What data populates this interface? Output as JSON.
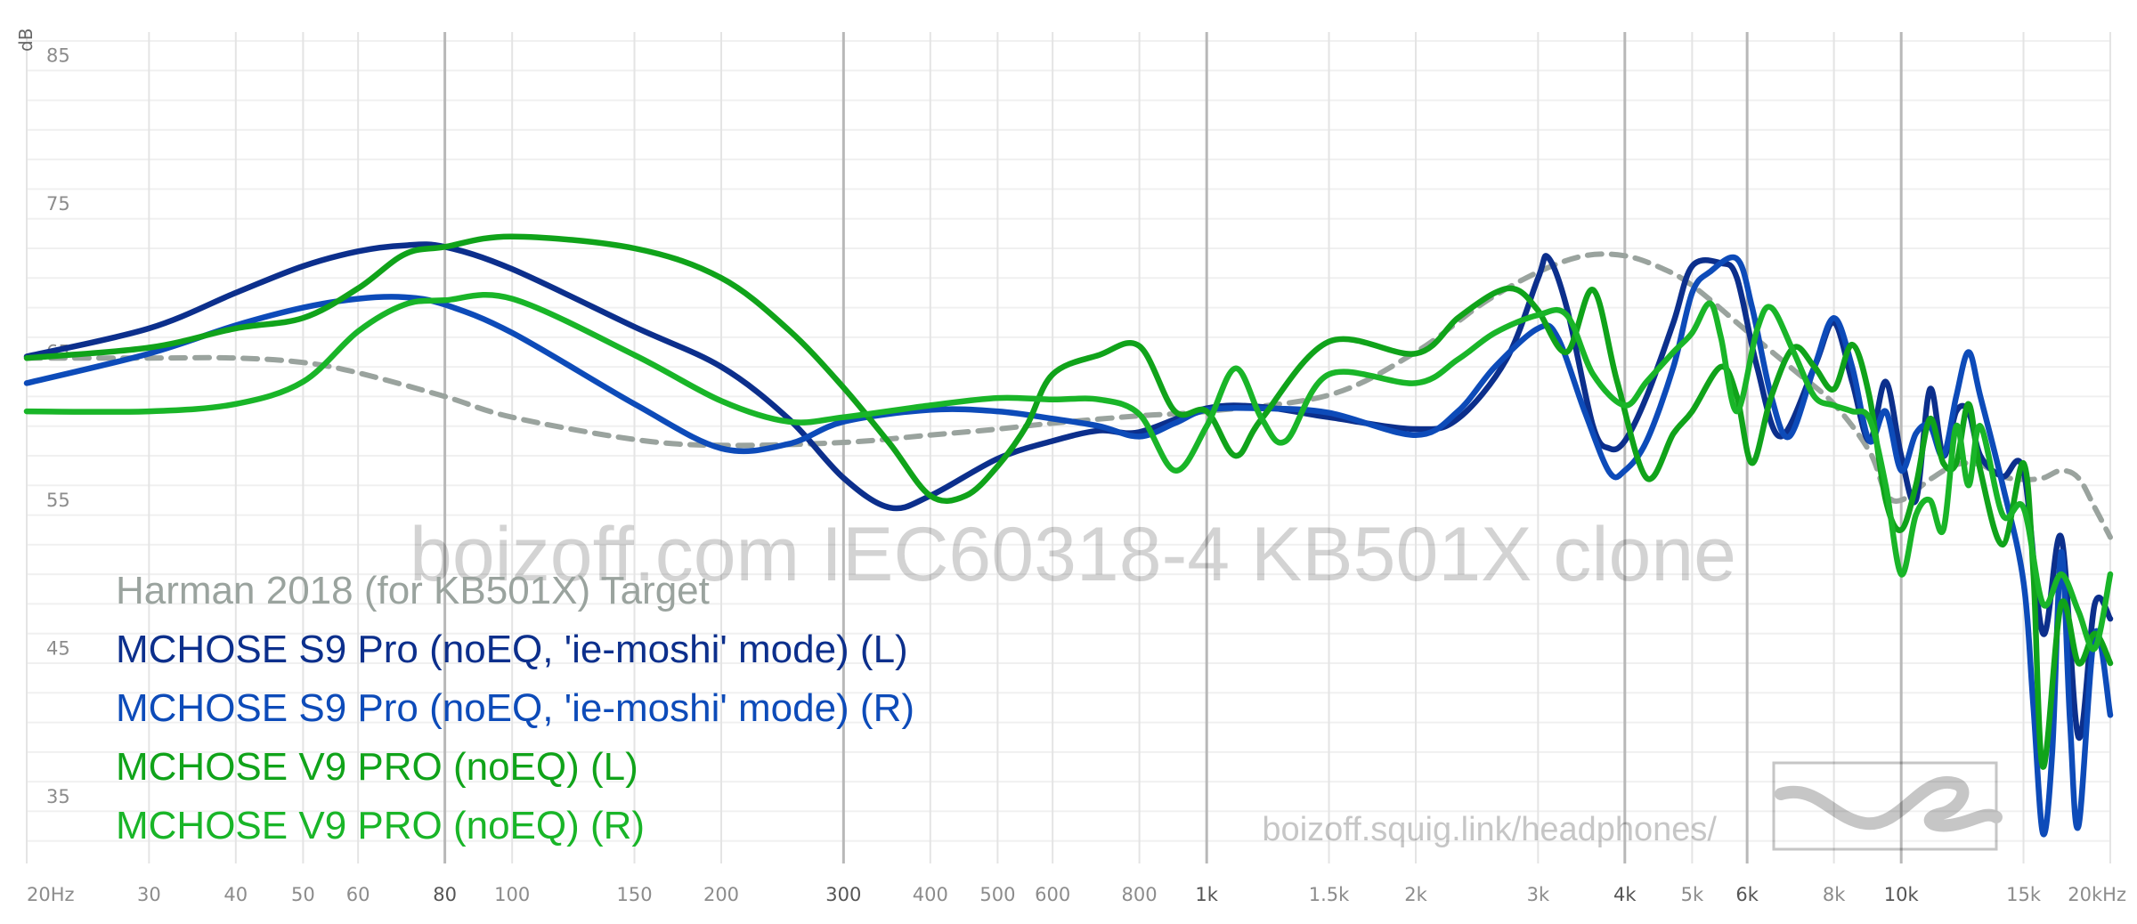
{
  "chart_data": {
    "type": "line",
    "xscale": "log",
    "xlim": [
      20,
      20000
    ],
    "ylim": [
      30,
      86
    ],
    "ylabel": "dB",
    "y_ticks": [
      "85",
      "75",
      "65",
      "55",
      "45",
      "35"
    ],
    "y_tick_values": [
      85,
      75,
      65,
      55,
      45,
      35
    ],
    "x_ticks": [
      {
        "label": "20Hz",
        "value": 20
      },
      {
        "label": "30",
        "value": 30
      },
      {
        "label": "40",
        "value": 40
      },
      {
        "label": "50",
        "value": 50
      },
      {
        "label": "60",
        "value": 60
      },
      {
        "label": "80",
        "value": 80,
        "major": true
      },
      {
        "label": "100",
        "value": 100
      },
      {
        "label": "150",
        "value": 150
      },
      {
        "label": "200",
        "value": 200
      },
      {
        "label": "300",
        "value": 300,
        "major": true
      },
      {
        "label": "400",
        "value": 400
      },
      {
        "label": "500",
        "value": 500
      },
      {
        "label": "600",
        "value": 600
      },
      {
        "label": "800",
        "value": 800
      },
      {
        "label": "1k",
        "value": 1000,
        "major": true
      },
      {
        "label": "1.5k",
        "value": 1500
      },
      {
        "label": "2k",
        "value": 2000
      },
      {
        "label": "3k",
        "value": 3000
      },
      {
        "label": "4k",
        "value": 4000,
        "major": true
      },
      {
        "label": "5k",
        "value": 5000
      },
      {
        "label": "6k",
        "value": 6000,
        "major": true
      },
      {
        "label": "8k",
        "value": 8000
      },
      {
        "label": "10k",
        "value": 10000,
        "major": true
      },
      {
        "label": "15k",
        "value": 15000
      },
      {
        "label": "20kHz",
        "value": 20000
      }
    ],
    "watermark": "boizoff.com IEC60318-4 KB501X clone",
    "url": "boizoff.squig.link/headphones/",
    "series": [
      {
        "name": "Harman 2018 (for KB501X) Target",
        "color": "#9aa39e",
        "dashed": true,
        "points": [
          [
            20,
            64.6
          ],
          [
            30,
            64.6
          ],
          [
            40,
            64.6
          ],
          [
            50,
            64.3
          ],
          [
            60,
            63.6
          ],
          [
            80,
            62
          ],
          [
            100,
            60.6
          ],
          [
            150,
            59.1
          ],
          [
            200,
            58.7
          ],
          [
            300,
            58.9
          ],
          [
            400,
            59.4
          ],
          [
            500,
            59.8
          ],
          [
            600,
            60.2
          ],
          [
            800,
            60.7
          ],
          [
            1000,
            61.0
          ],
          [
            1500,
            62.1
          ],
          [
            2000,
            65.0
          ],
          [
            2500,
            68.3
          ],
          [
            3000,
            70.4
          ],
          [
            3500,
            71.5
          ],
          [
            4000,
            71.5
          ],
          [
            4500,
            70.7
          ],
          [
            5000,
            69.5
          ],
          [
            6000,
            66.4
          ],
          [
            7000,
            63.8
          ],
          [
            8000,
            61.5
          ],
          [
            9000,
            58.3
          ],
          [
            9500,
            55.5
          ],
          [
            10000,
            55
          ],
          [
            11000,
            56.4
          ],
          [
            12000,
            57.4
          ],
          [
            13000,
            57.4
          ],
          [
            14000,
            56.6
          ],
          [
            15000,
            56.4
          ],
          [
            16000,
            56.5
          ],
          [
            17000,
            57
          ],
          [
            18000,
            56.5
          ],
          [
            19000,
            54.5
          ],
          [
            20000,
            52.5
          ]
        ]
      },
      {
        "name": "MCHOSE S9 Pro (noEQ, 'ie-moshi' mode) (L)",
        "color": "#0c2f8c",
        "points": [
          [
            20,
            64.7
          ],
          [
            30,
            66.6
          ],
          [
            40,
            69.0
          ],
          [
            50,
            70.8
          ],
          [
            60,
            71.8
          ],
          [
            70,
            72.2
          ],
          [
            80,
            72.1
          ],
          [
            100,
            70.6
          ],
          [
            150,
            66.7
          ],
          [
            200,
            64
          ],
          [
            250,
            60.5
          ],
          [
            300,
            56.5
          ],
          [
            350,
            54.5
          ],
          [
            400,
            55.3
          ],
          [
            500,
            57.8
          ],
          [
            600,
            59
          ],
          [
            700,
            59.7
          ],
          [
            800,
            59.6
          ],
          [
            1000,
            61.2
          ],
          [
            1200,
            61.3
          ],
          [
            1500,
            60.6
          ],
          [
            2000,
            59.8
          ],
          [
            2300,
            60.5
          ],
          [
            2700,
            64.5
          ],
          [
            3000,
            70
          ],
          [
            3100,
            71.4
          ],
          [
            3300,
            68
          ],
          [
            3600,
            60
          ],
          [
            3800,
            58.5
          ],
          [
            4000,
            59
          ],
          [
            4300,
            62
          ],
          [
            4700,
            67
          ],
          [
            5000,
            70.8
          ],
          [
            5500,
            71
          ],
          [
            5800,
            70
          ],
          [
            6200,
            64
          ],
          [
            6700,
            59.3
          ],
          [
            7500,
            64
          ],
          [
            8000,
            67
          ],
          [
            8500,
            63
          ],
          [
            9000,
            59
          ],
          [
            9500,
            63
          ],
          [
            10000,
            58
          ],
          [
            10500,
            55
          ],
          [
            11000,
            62.5
          ],
          [
            11500,
            58
          ],
          [
            12000,
            61
          ],
          [
            12500,
            61
          ],
          [
            13000,
            58
          ],
          [
            14000,
            56.6
          ],
          [
            15000,
            57
          ],
          [
            16000,
            46
          ],
          [
            17000,
            52.5
          ],
          [
            18000,
            39
          ],
          [
            19000,
            48
          ],
          [
            20000,
            47
          ]
        ]
      },
      {
        "name": "MCHOSE S9 Pro (noEQ, 'ie-moshi' mode) (R)",
        "color": "#0d4bb9",
        "points": [
          [
            20,
            62.9
          ],
          [
            30,
            64.9
          ],
          [
            40,
            66.8
          ],
          [
            50,
            68.0
          ],
          [
            60,
            68.6
          ],
          [
            70,
            68.7
          ],
          [
            80,
            68.2
          ],
          [
            100,
            66.3
          ],
          [
            150,
            61.5
          ],
          [
            200,
            58.5
          ],
          [
            250,
            58.8
          ],
          [
            300,
            60.3
          ],
          [
            400,
            61.1
          ],
          [
            500,
            61.0
          ],
          [
            600,
            60.5
          ],
          [
            700,
            60
          ],
          [
            800,
            59.3
          ],
          [
            900,
            60.2
          ],
          [
            1000,
            61.1
          ],
          [
            1200,
            61.2
          ],
          [
            1500,
            60.9
          ],
          [
            2000,
            59.4
          ],
          [
            2300,
            61
          ],
          [
            2600,
            64
          ],
          [
            3000,
            66.6
          ],
          [
            3200,
            66
          ],
          [
            3500,
            61
          ],
          [
            3800,
            56.9
          ],
          [
            4000,
            57
          ],
          [
            4300,
            59
          ],
          [
            4700,
            64
          ],
          [
            5000,
            69
          ],
          [
            5300,
            70.4
          ],
          [
            5800,
            71.3
          ],
          [
            6100,
            68
          ],
          [
            6500,
            62
          ],
          [
            6900,
            59.3
          ],
          [
            7500,
            64
          ],
          [
            8000,
            67.3
          ],
          [
            8500,
            64
          ],
          [
            9000,
            59
          ],
          [
            9500,
            61
          ],
          [
            10000,
            57
          ],
          [
            10500,
            59.5
          ],
          [
            11000,
            60
          ],
          [
            11500,
            58
          ],
          [
            12000,
            62
          ],
          [
            12500,
            65
          ],
          [
            13000,
            62
          ],
          [
            14000,
            56
          ],
          [
            15000,
            49.5
          ],
          [
            15500,
            41
          ],
          [
            16000,
            32.5
          ],
          [
            16500,
            38
          ],
          [
            17000,
            51.5
          ],
          [
            17500,
            40
          ],
          [
            18000,
            33
          ],
          [
            19000,
            46
          ],
          [
            20000,
            40.5
          ]
        ]
      },
      {
        "name": "MCHOSE V9 PRO (noEQ) (L)",
        "color": "#10a31a",
        "points": [
          [
            20,
            64.6
          ],
          [
            30,
            65.3
          ],
          [
            40,
            66.6
          ],
          [
            50,
            67.3
          ],
          [
            60,
            69.3
          ],
          [
            70,
            71.6
          ],
          [
            80,
            72.1
          ],
          [
            100,
            72.8
          ],
          [
            150,
            72
          ],
          [
            200,
            70
          ],
          [
            250,
            66.5
          ],
          [
            300,
            62.6
          ],
          [
            350,
            58.8
          ],
          [
            400,
            55.3
          ],
          [
            450,
            55.3
          ],
          [
            500,
            57.3
          ],
          [
            550,
            60
          ],
          [
            600,
            63.5
          ],
          [
            700,
            64.8
          ],
          [
            800,
            65.4
          ],
          [
            900,
            61
          ],
          [
            1000,
            61
          ],
          [
            1100,
            58
          ],
          [
            1200,
            60.5
          ],
          [
            1500,
            65.7
          ],
          [
            2000,
            64.9
          ],
          [
            2300,
            67.3
          ],
          [
            2600,
            69
          ],
          [
            2800,
            69.2
          ],
          [
            3000,
            67.8
          ],
          [
            3300,
            65
          ],
          [
            3600,
            69.2
          ],
          [
            3900,
            63
          ],
          [
            4300,
            56.5
          ],
          [
            4700,
            59.5
          ],
          [
            5000,
            61
          ],
          [
            5500,
            64
          ],
          [
            5800,
            62
          ],
          [
            6100,
            57.5
          ],
          [
            6500,
            62
          ],
          [
            7000,
            65.3
          ],
          [
            7500,
            64
          ],
          [
            8000,
            62.5
          ],
          [
            8500,
            65.5
          ],
          [
            9000,
            62
          ],
          [
            9500,
            55
          ],
          [
            10000,
            53
          ],
          [
            10500,
            56
          ],
          [
            11000,
            60.5
          ],
          [
            11500,
            57.5
          ],
          [
            12000,
            57.5
          ],
          [
            12500,
            61.5
          ],
          [
            13000,
            57
          ],
          [
            14000,
            52
          ],
          [
            15000,
            57.5
          ],
          [
            15500,
            50
          ],
          [
            16000,
            37
          ],
          [
            17000,
            48
          ],
          [
            18000,
            44
          ],
          [
            19000,
            46
          ],
          [
            20000,
            44
          ]
        ]
      },
      {
        "name": "MCHOSE V9 PRO (noEQ) (R)",
        "color": "#19b528",
        "points": [
          [
            20,
            61
          ],
          [
            30,
            61
          ],
          [
            40,
            61.5
          ],
          [
            50,
            63
          ],
          [
            60,
            66.4
          ],
          [
            70,
            68.2
          ],
          [
            80,
            68.5
          ],
          [
            100,
            68.6
          ],
          [
            150,
            64.8
          ],
          [
            200,
            61.7
          ],
          [
            250,
            60.3
          ],
          [
            300,
            60.6
          ],
          [
            400,
            61.4
          ],
          [
            500,
            61.9
          ],
          [
            600,
            61.8
          ],
          [
            700,
            61.8
          ],
          [
            800,
            60.8
          ],
          [
            900,
            57
          ],
          [
            1000,
            60
          ],
          [
            1100,
            63.9
          ],
          [
            1200,
            60.5
          ],
          [
            1300,
            59
          ],
          [
            1500,
            63.5
          ],
          [
            2000,
            62.9
          ],
          [
            2300,
            64.5
          ],
          [
            2600,
            66.3
          ],
          [
            3000,
            67.5
          ],
          [
            3300,
            67.5
          ],
          [
            3600,
            63.5
          ],
          [
            4000,
            61.4
          ],
          [
            4300,
            63
          ],
          [
            4700,
            65
          ],
          [
            5000,
            66.3
          ],
          [
            5300,
            68.3
          ],
          [
            5500,
            66
          ],
          [
            5800,
            61
          ],
          [
            6200,
            66.5
          ],
          [
            6500,
            68
          ],
          [
            7000,
            65
          ],
          [
            7500,
            62
          ],
          [
            8000,
            61.4
          ],
          [
            8500,
            61
          ],
          [
            9000,
            60.5
          ],
          [
            9500,
            56
          ],
          [
            10000,
            50
          ],
          [
            10500,
            54
          ],
          [
            11000,
            55
          ],
          [
            11500,
            53
          ],
          [
            12000,
            60
          ],
          [
            12500,
            56
          ],
          [
            13000,
            60
          ],
          [
            14000,
            54
          ],
          [
            15000,
            54.5
          ],
          [
            16000,
            48
          ],
          [
            17000,
            50
          ],
          [
            18000,
            47.5
          ],
          [
            19000,
            45
          ],
          [
            20000,
            50
          ]
        ]
      }
    ]
  }
}
